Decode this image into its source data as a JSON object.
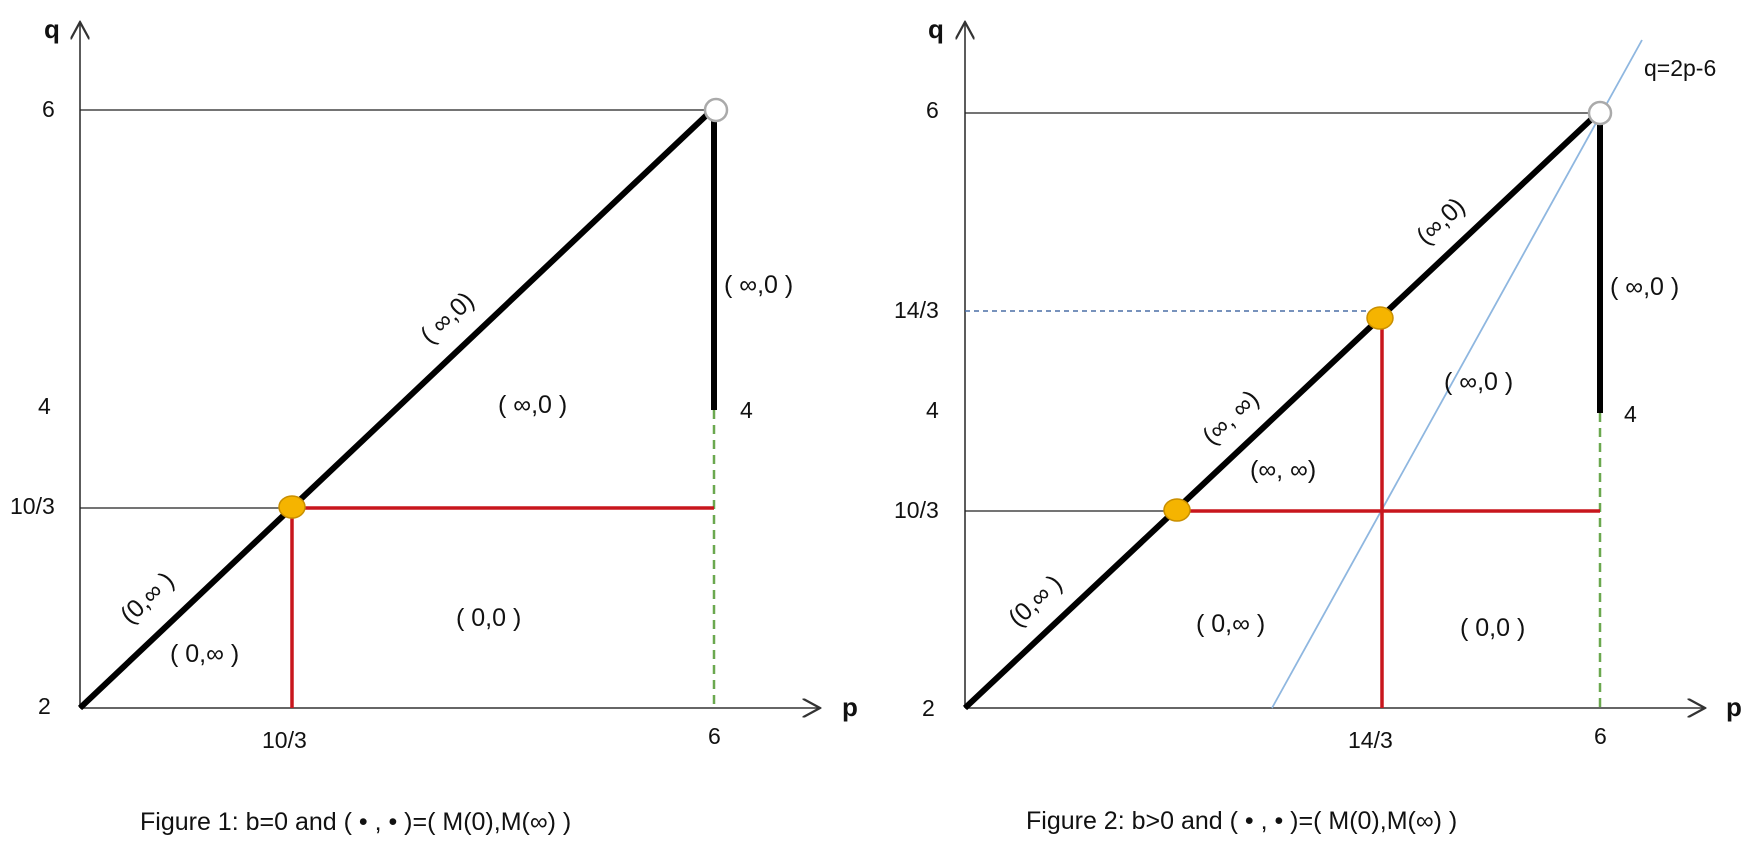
{
  "colors": {
    "axis": "#333333",
    "boundary": "#000000",
    "red": "#c8161d",
    "green_dashed": "#6aa84f",
    "blue_line": "#8fb7e0",
    "blue_dashed": "#4a6fa5",
    "marker_fill": "#f5b400",
    "marker_stroke": "#c98f00",
    "open_marker": "#aaaaaa"
  },
  "figure1": {
    "axis_x_label": "p",
    "axis_y_label": "q",
    "q_ticks": [
      "6",
      "4",
      "10/3",
      "2"
    ],
    "p_ticks": [
      "10/3",
      "6"
    ],
    "label_4_right": "4",
    "regions": {
      "diag_upper": "( ∞,0)",
      "vertical": "( ∞,0 )",
      "upper_mid": "( ∞,0 )",
      "diag_lower": "(0,∞ )",
      "lower_left": "( 0,∞ )",
      "lower_right": "( 0,0 )"
    },
    "caption": "Figure 1:  b=0 and ( • , • )=( M(0),M(∞) )"
  },
  "figure2": {
    "axis_x_label": "p",
    "axis_y_label": "q",
    "q_ticks": [
      "6",
      "14/3",
      "4",
      "10/3",
      "2"
    ],
    "p_ticks": [
      "14/3",
      "6"
    ],
    "label_4_right": "4",
    "line_label": "q=2p-6",
    "regions": {
      "diag_upper": "(∞,0)",
      "vertical": "( ∞,0 )",
      "upper_right": "( ∞,0 )",
      "diag_mid": "(∞, ∞)",
      "mid_region": "(∞, ∞)",
      "diag_lower": "(0,∞ )",
      "lower_left": "( 0,∞ )",
      "lower_right": "( 0,0 )"
    },
    "caption": "Figure 2:  b>0  and  ( • , • )=( M(0),M(∞) )"
  }
}
